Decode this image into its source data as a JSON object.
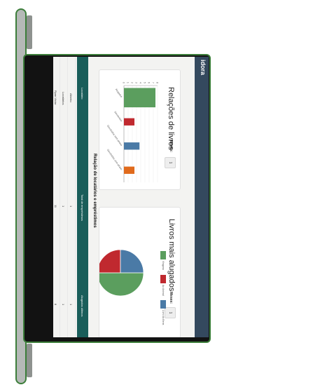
{
  "app": {
    "brand": "idora"
  },
  "books_chart": {
    "title": "Relações de livros",
    "month_label": "Meses:",
    "month_value": "1"
  },
  "rented_chart": {
    "title": "Livros mais alugados",
    "month_label": "Meses:",
    "month_value": "1"
  },
  "table": {
    "title": "Relação de locatários e empréstimos",
    "headers": [
      "Locatário",
      "Total de empréstimos",
      "Alugados últimos"
    ],
    "rows": [
      [
        "Alberto",
        "1",
        "1"
      ],
      [
        "Locatários",
        "1",
        "1"
      ],
      [
        "Ryan Victor",
        "11",
        "8"
      ]
    ]
  },
  "colors": {
    "topbar": "#34495e",
    "table_header": "#1a5e5a",
    "green": "#5b9e5e",
    "red": "#c0292f",
    "blue": "#4a7aa6",
    "orange": "#e06a1c"
  },
  "chart_data": [
    {
      "type": "bar",
      "title": "Relações de livros",
      "categories": [
        "Alugados",
        "Devolvidos",
        "Devolvidos sem atraso",
        "Devolvidos com atraso"
      ],
      "values": [
        7.5,
        2.5,
        3.7,
        2.5
      ],
      "ylim": [
        0,
        8
      ],
      "yticks": [
        "0",
        "1",
        "2",
        "3",
        "4",
        "5",
        "6",
        "7",
        "8"
      ],
      "colors": [
        "#5b9e5e",
        "#c0292f",
        "#4a7aa6",
        "#e06a1c"
      ]
    },
    {
      "type": "pie",
      "title": "Livros mais alugados",
      "labels": [
        "Vingana",
        "Ao Animal",
        "Livro do Bens"
      ],
      "values": [
        50,
        25,
        25
      ],
      "colors": [
        "#5b9e5e",
        "#c0292f",
        "#4a7aa6"
      ]
    }
  ]
}
